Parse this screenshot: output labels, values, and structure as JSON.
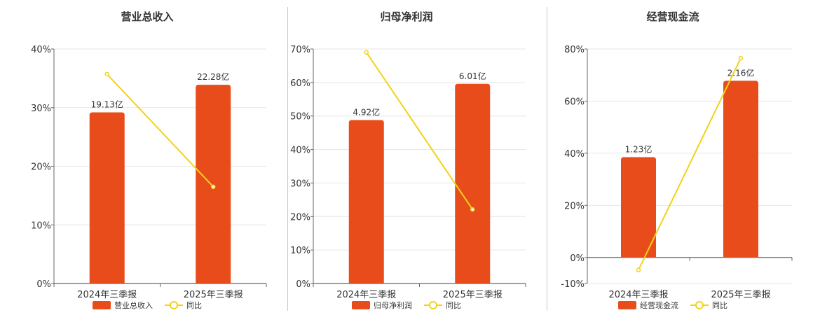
{
  "colors": {
    "bar": "#e84c1b",
    "line": "#f2d21a",
    "axis": "#666666",
    "grid": "#e6e6e6",
    "text": "#333333"
  },
  "chart_data": [
    {
      "type": "bar",
      "title": "营业总收入",
      "categories": [
        "2024年三季报",
        "2025年三季报"
      ],
      "series": [
        {
          "name": "营业总收入",
          "type": "bar",
          "values": [
            29.2,
            33.9
          ],
          "labels": [
            "19.13亿",
            "22.28亿"
          ]
        },
        {
          "name": "同比",
          "type": "line",
          "values": [
            35.7,
            16.5
          ]
        }
      ],
      "ylim": [
        0,
        40
      ],
      "yticks": [
        0,
        10,
        20,
        30,
        40
      ],
      "ytick_labels": [
        "0%",
        "10%",
        "20%",
        "30%",
        "40%"
      ],
      "grid": true,
      "legend": "bottom"
    },
    {
      "type": "bar",
      "title": "归母净利润",
      "categories": [
        "2024年三季报",
        "2025年三季报"
      ],
      "series": [
        {
          "name": "归母净利润",
          "type": "bar",
          "values": [
            48.8,
            59.6
          ],
          "labels": [
            "4.92亿",
            "6.01亿"
          ]
        },
        {
          "name": "同比",
          "type": "line",
          "values": [
            69.0,
            22.1
          ]
        }
      ],
      "ylim": [
        0,
        70
      ],
      "yticks": [
        0,
        10,
        20,
        30,
        40,
        50,
        60,
        70
      ],
      "ytick_labels": [
        "0%",
        "10%",
        "20%",
        "30%",
        "40%",
        "50%",
        "60%",
        "70%"
      ],
      "grid": true,
      "legend": "bottom"
    },
    {
      "type": "bar",
      "title": "经营现金流",
      "categories": [
        "2024年三季报",
        "2025年三季报"
      ],
      "series": [
        {
          "name": "经营现金流",
          "type": "bar",
          "values": [
            38.5,
            67.8
          ],
          "labels": [
            "1.23亿",
            "2.16亿"
          ]
        },
        {
          "name": "同比",
          "type": "line",
          "values": [
            -4.8,
            76.5
          ]
        }
      ],
      "ylim": [
        -10,
        80
      ],
      "yticks": [
        -10,
        0,
        20,
        40,
        60,
        80
      ],
      "ytick_labels": [
        "-10%",
        "0%",
        "20%",
        "40%",
        "60%",
        "80%"
      ],
      "grid": true,
      "legend": "bottom"
    }
  ]
}
